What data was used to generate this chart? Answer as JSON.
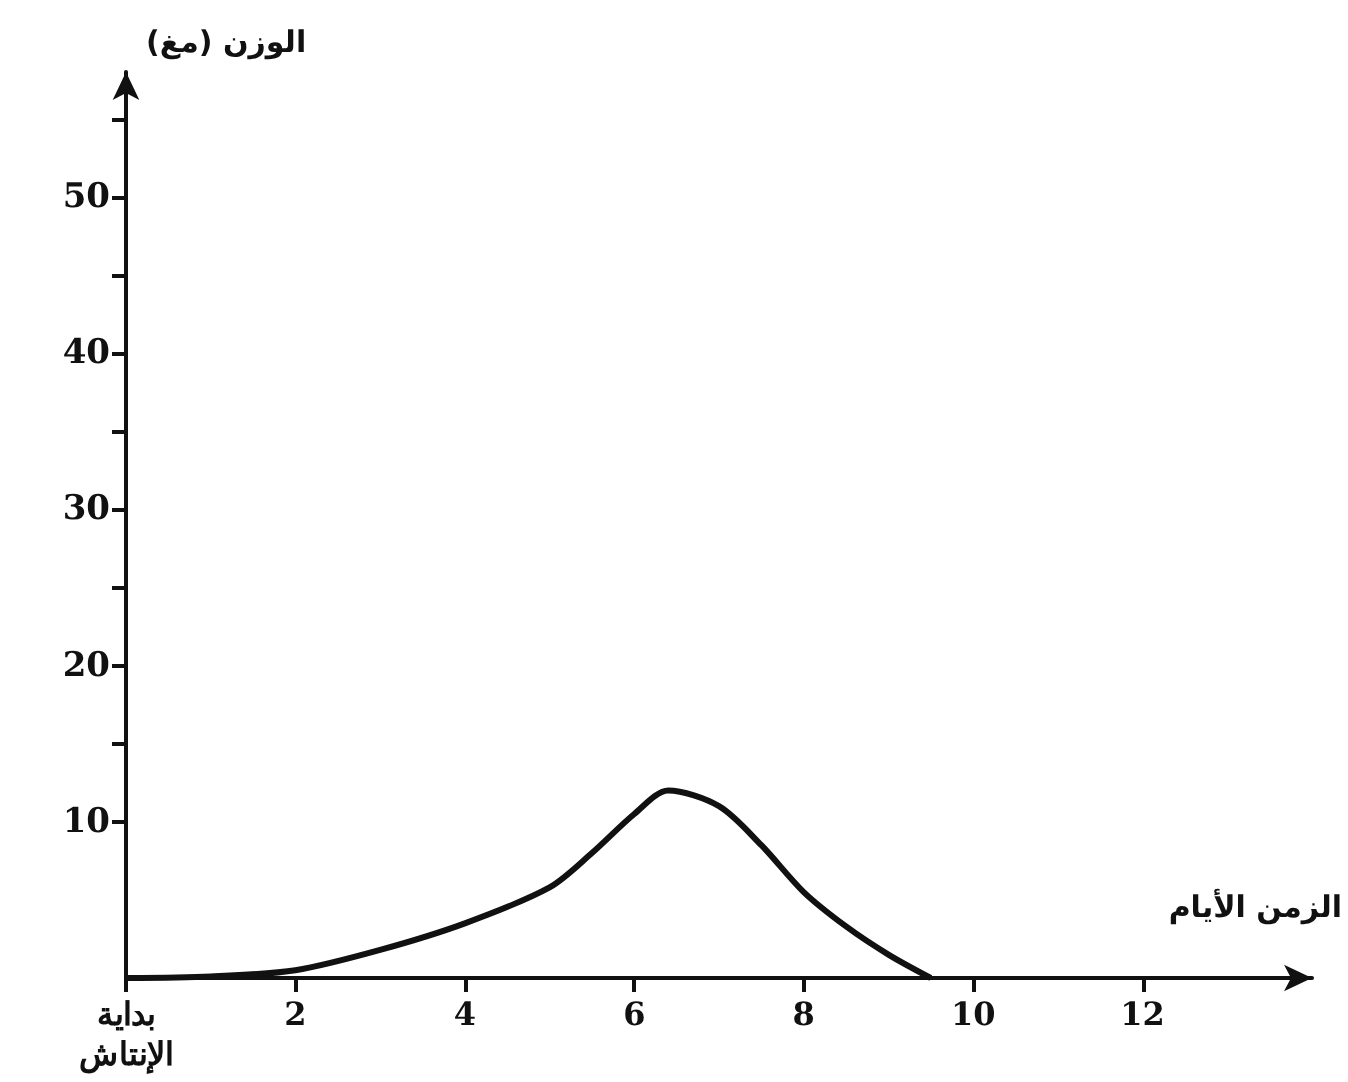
{
  "chart_data": {
    "type": "line",
    "xlabel": "الزمن الأيام",
    "ylabel": "الوزن (مغ)",
    "x": [
      0,
      1,
      2,
      3,
      4,
      5,
      5.5,
      6,
      6.4,
      7,
      7.5,
      8,
      8.5,
      9,
      9.5
    ],
    "series": [
      {
        "color": "#111111",
        "values": [
          0,
          0.1,
          0.5,
          1.8,
          3.5,
          5.8,
          8,
          10.5,
          12,
          11,
          8.5,
          5.5,
          3.3,
          1.5,
          0
        ]
      }
    ],
    "xlim": [
      0,
      14
    ],
    "xticks": [
      {
        "value": 0,
        "label": "بداية\nالإنتاش"
      },
      2,
      4,
      6,
      8,
      10,
      12
    ],
    "ylim": [
      0,
      58
    ],
    "yticks": [
      10,
      {
        "value": 15,
        "label": null
      },
      20,
      {
        "value": 25,
        "label": null
      },
      30,
      {
        "value": 35,
        "label": null
      },
      40,
      {
        "value": 45,
        "label": null
      },
      50,
      {
        "value": 55,
        "label": null
      }
    ],
    "grid": false,
    "marker": "none",
    "line_style": "solid"
  }
}
